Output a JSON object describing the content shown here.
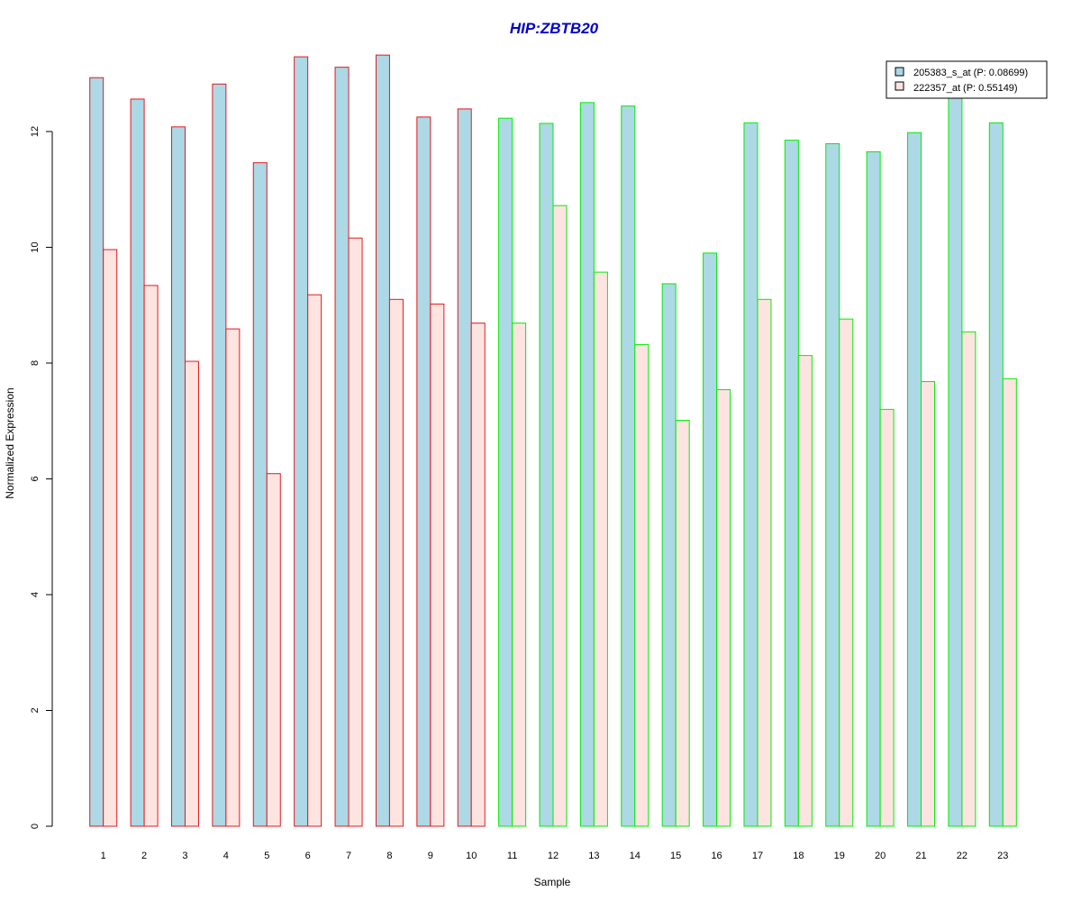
{
  "chart_data": {
    "type": "bar",
    "title": "HIP:ZBTB20",
    "xlabel": "Sample",
    "ylabel": "Normalized Expression",
    "ylim": [
      0,
      13.4
    ],
    "yticks": [
      "0",
      "2",
      "4",
      "6",
      "8",
      "10",
      "12"
    ],
    "categories": [
      "1",
      "2",
      "3",
      "4",
      "5",
      "6",
      "7",
      "8",
      "9",
      "10",
      "11",
      "12",
      "13",
      "14",
      "15",
      "16",
      "17",
      "18",
      "19",
      "20",
      "21",
      "22",
      "23"
    ],
    "series": [
      {
        "name": "205383_s_at (P: 0.08699)",
        "fill": "#add8e6",
        "values": [
          12.93,
          12.56,
          12.08,
          12.82,
          11.46,
          13.29,
          13.11,
          13.32,
          12.25,
          12.39,
          12.23,
          12.14,
          12.5,
          12.44,
          9.37,
          9.9,
          12.15,
          11.85,
          11.79,
          11.65,
          11.98,
          12.6,
          12.15
        ]
      },
      {
        "name": "222357_at (P: 0.55149)",
        "fill": "#fde4e1",
        "values": [
          9.96,
          9.34,
          8.03,
          8.59,
          6.09,
          9.18,
          10.16,
          9.1,
          9.02,
          8.69,
          8.69,
          10.72,
          9.57,
          8.32,
          7.01,
          7.54,
          9.1,
          8.13,
          8.76,
          7.2,
          7.68,
          8.54,
          7.73
        ]
      }
    ],
    "group_border_colors": [
      "#e31a1c",
      "#e31a1c",
      "#e31a1c",
      "#e31a1c",
      "#e31a1c",
      "#e31a1c",
      "#e31a1c",
      "#e31a1c",
      "#e31a1c",
      "#e31a1c",
      "#00ee00",
      "#00ee00",
      "#00ee00",
      "#00ee00",
      "#00ee00",
      "#00ee00",
      "#00ee00",
      "#00ee00",
      "#00ee00",
      "#00ee00",
      "#00ee00",
      "#00ee00",
      "#00ee00"
    ],
    "title_color": "#0000cc",
    "legend_placement": "top-right",
    "grid": false
  }
}
